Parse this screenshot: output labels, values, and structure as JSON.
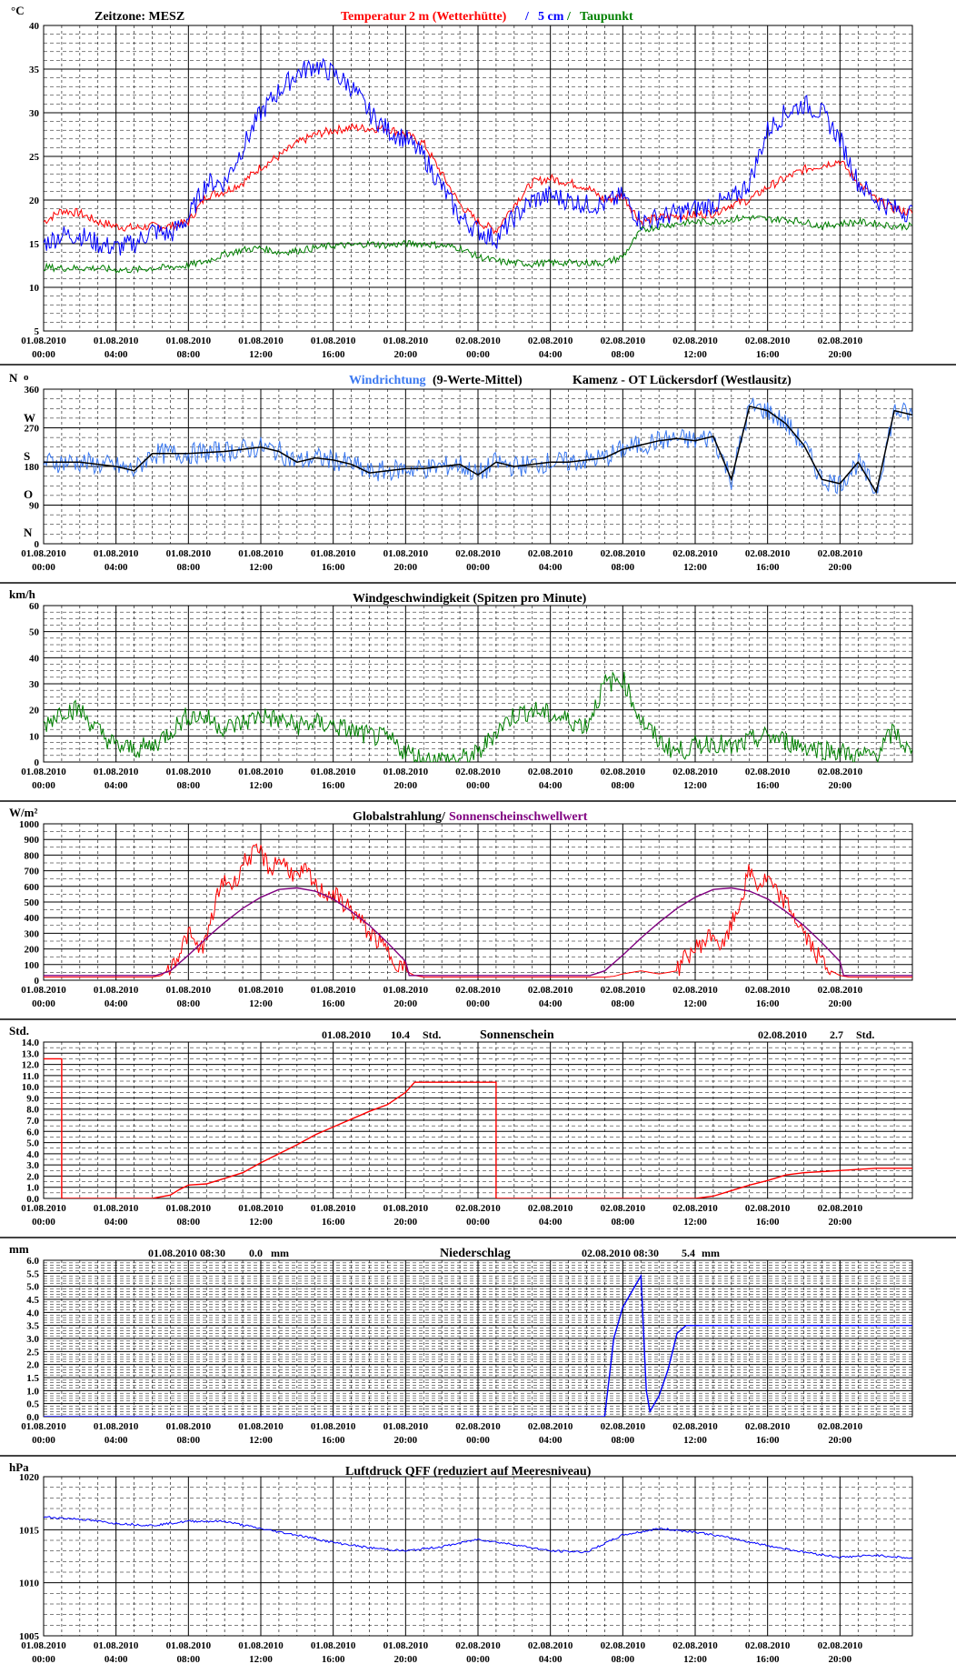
{
  "xaxis": {
    "dates": [
      "01.08.2010",
      "01.08.2010",
      "01.08.2010",
      "01.08.2010",
      "01.08.2010",
      "01.08.2010",
      "02.08.2010",
      "02.08.2010",
      "02.08.2010",
      "02.08.2010",
      "02.08.2010",
      "02.08.2010"
    ],
    "times": [
      "00:00",
      "04:00",
      "08:00",
      "12:00",
      "16:00",
      "20:00",
      "00:00",
      "04:00",
      "08:00",
      "12:00",
      "16:00",
      "20:00"
    ]
  },
  "panels": {
    "temp": {
      "unit": "°C",
      "zone_label": "Zeitzone: MESZ",
      "title_red": "Temperatur 2 m (Wetterhütte)",
      "title_sep1": " / ",
      "title_blue": "5 cm",
      "title_sep2": " / ",
      "title_green": "Taupunkt",
      "yticks": [
        "40",
        "35",
        "30",
        "25",
        "20",
        "15",
        "10",
        "5"
      ]
    },
    "wind_dir": {
      "unit": "N",
      "title_blue": "Windrichtung",
      "title_rest": " (9-Werte-Mittel)",
      "station": "Kamenz - OT Lückersdorf (Westlausitz)",
      "ytick_values": [
        "360",
        "270",
        "180",
        "90",
        "0"
      ],
      "ytick_letters": [
        "W",
        "S",
        "O",
        "N"
      ]
    },
    "wind_speed": {
      "unit": "km/h",
      "title": "Windgeschwindigkeit (Spitzen pro Minute)",
      "yticks": [
        "60",
        "50",
        "40",
        "30",
        "20",
        "10",
        "0"
      ]
    },
    "radiation": {
      "unit": "W/m²",
      "title_black": "Globalstrahlung/",
      "title_purple": " Sonnenscheinschwellwert",
      "yticks": [
        "1000",
        "900",
        "800",
        "700",
        "600",
        "500",
        "400",
        "300",
        "200",
        "100",
        "0"
      ]
    },
    "sunshine": {
      "unit": "Std.",
      "title": "Sonnenschein",
      "day1_date": "01.08.2010",
      "day1_value": "10.4",
      "day1_unit": "Std.",
      "day2_date": "02.08.2010",
      "day2_value": "2.7",
      "day2_unit": "Std.",
      "yticks": [
        "14.0",
        "13.0",
        "12.0",
        "11.0",
        "10.0",
        "9.0",
        "8.0",
        "7.0",
        "6.0",
        "5.0",
        "4.0",
        "3.0",
        "2.0",
        "1.0",
        "0.0"
      ]
    },
    "precip": {
      "unit": "mm",
      "title": "Niederschlag",
      "day1_stamp": "01.08.2010 08:30",
      "day1_value": "0.0",
      "day1_unit": "mm",
      "day2_stamp": "02.08.2010 08:30",
      "day2_value": "5.4",
      "day2_unit": "mm",
      "yticks": [
        "6.0",
        "5.5",
        "5.0",
        "4.5",
        "4.0",
        "3.5",
        "3.0",
        "2.5",
        "2.0",
        "1.5",
        "1.0",
        "0.5",
        "0.0"
      ]
    },
    "pressure": {
      "unit": "hPa",
      "title": "Luftdruck QFF (reduziert auf Meeresniveau)",
      "yticks": [
        "1020",
        "1015",
        "1010",
        "1005"
      ]
    }
  },
  "colors": {
    "temp2m": "#ff0000",
    "temp5cm": "#0000ff",
    "dewpoint": "#008000",
    "wind_dir_raw": "#3a78f0",
    "wind_dir_mean": "#000000",
    "wind_speed": "#008000",
    "radiation": "#ff0000",
    "threshold": "#800080",
    "sunshine": "#ff0000",
    "precip": "#0000ff",
    "pressure": "#0000ff"
  },
  "chart_data": [
    {
      "type": "line",
      "x_unit": "hours since 01.08.2010 00:00",
      "xlim": [
        0,
        48
      ],
      "ylim": [
        5,
        40
      ],
      "series": [
        {
          "name": "Temperatur 2 m (Wetterhütte)",
          "x": [
            0,
            1,
            2,
            3,
            4,
            5,
            6,
            7,
            8,
            9,
            10,
            11,
            12,
            13,
            14,
            15,
            16,
            17,
            18,
            19,
            20,
            21,
            22,
            23,
            24,
            25,
            26,
            27,
            28,
            29,
            30,
            31,
            32,
            33,
            34,
            35,
            36,
            37,
            38,
            39,
            40,
            41,
            42,
            43,
            44,
            45,
            46,
            47,
            48
          ],
          "y": [
            17.5,
            18.8,
            18.5,
            17.5,
            17,
            16.8,
            17,
            17,
            17.5,
            20.5,
            21,
            22,
            23.8,
            25,
            26.5,
            27.5,
            28,
            28.3,
            28.2,
            28.2,
            27.5,
            26.5,
            23,
            19.5,
            17.5,
            16.5,
            19.5,
            22,
            22.5,
            22,
            21.5,
            20,
            20.5,
            17.5,
            18,
            18.2,
            18.3,
            18.5,
            19.5,
            20,
            21.5,
            22.5,
            23.5,
            24,
            24.5,
            22,
            20,
            19,
            18.5
          ]
        },
        {
          "name": "5 cm",
          "x": [
            0,
            1,
            2,
            3,
            4,
            5,
            6,
            7,
            8,
            9,
            10,
            11,
            12,
            13,
            14,
            15,
            16,
            17,
            18,
            19,
            20,
            21,
            22,
            23,
            24,
            25,
            26,
            27,
            28,
            29,
            30,
            31,
            32,
            33,
            34,
            35,
            36,
            37,
            38,
            39,
            40,
            41,
            42,
            43,
            44,
            45,
            46,
            47,
            48
          ],
          "y": [
            15,
            16,
            16,
            15,
            14.5,
            15,
            16.5,
            16,
            18,
            22,
            22,
            26,
            30,
            32.5,
            34.5,
            35.5,
            34.5,
            33,
            30,
            28,
            27,
            25,
            21.5,
            18,
            16.5,
            15.5,
            18,
            20,
            20.5,
            20,
            19.5,
            19.5,
            20.5,
            17.5,
            18,
            18.5,
            19,
            19.5,
            20,
            22,
            28,
            30,
            31,
            30,
            27,
            22,
            20,
            19,
            18.5
          ]
        },
        {
          "name": "Taupunkt",
          "x": [
            0,
            1,
            2,
            3,
            4,
            5,
            6,
            7,
            8,
            9,
            10,
            11,
            12,
            13,
            14,
            15,
            16,
            17,
            18,
            19,
            20,
            21,
            22,
            23,
            24,
            25,
            26,
            27,
            28,
            29,
            30,
            31,
            32,
            33,
            34,
            35,
            36,
            37,
            38,
            39,
            40,
            41,
            42,
            43,
            44,
            45,
            46,
            47,
            48
          ],
          "y": [
            12.3,
            12.2,
            12.2,
            12.2,
            12,
            12,
            12.2,
            12.3,
            12.5,
            13,
            13.8,
            14.3,
            14.5,
            14,
            14.2,
            14.5,
            14.8,
            14.8,
            15,
            14.8,
            15,
            15,
            14.8,
            14.5,
            13.5,
            13,
            12.8,
            12.7,
            12.8,
            12.8,
            12.8,
            12.8,
            13.5,
            16.5,
            17,
            17.3,
            17.5,
            17.5,
            17.8,
            18,
            17.8,
            17.8,
            17.5,
            17,
            17.3,
            17.5,
            17.3,
            17,
            17
          ]
        }
      ]
    },
    {
      "type": "line",
      "x_unit": "hours since 01.08.2010 00:00",
      "xlim": [
        0,
        48
      ],
      "ylim": [
        0,
        360
      ],
      "series": [
        {
          "name": "Windrichtung",
          "x": [
            0,
            2,
            4,
            5,
            6,
            8,
            10,
            12,
            13,
            14,
            15,
            16,
            17,
            18,
            19,
            20,
            21,
            22,
            23,
            24,
            25,
            26,
            27,
            28,
            29,
            30,
            31,
            32,
            33,
            34,
            35,
            36,
            37,
            38,
            39,
            40,
            41,
            42,
            43,
            44,
            45,
            46,
            47,
            48
          ],
          "y": [
            190,
            190,
            180,
            170,
            210,
            210,
            215,
            225,
            215,
            190,
            200,
            195,
            185,
            165,
            170,
            175,
            175,
            180,
            185,
            160,
            190,
            180,
            185,
            190,
            190,
            195,
            200,
            220,
            230,
            240,
            245,
            240,
            250,
            150,
            320,
            310,
            280,
            230,
            150,
            140,
            190,
            120,
            310,
            300
          ]
        }
      ]
    },
    {
      "type": "line",
      "x_unit": "hours since 01.08.2010 00:00",
      "xlim": [
        0,
        48
      ],
      "ylim": [
        0,
        60
      ],
      "series": [
        {
          "name": "Windgeschwindigkeit (Spitzen pro Minute)",
          "x": [
            0,
            1,
            2,
            3,
            4,
            5,
            6,
            7,
            8,
            9,
            10,
            11,
            12,
            13,
            14,
            15,
            16,
            17,
            18,
            19,
            20,
            21,
            22,
            23,
            24,
            25,
            26,
            27,
            28,
            29,
            30,
            31,
            32,
            33,
            34,
            35,
            36,
            37,
            38,
            39,
            40,
            41,
            42,
            43,
            44,
            45,
            46,
            47,
            48
          ],
          "y": [
            14,
            20,
            20,
            12,
            6,
            5,
            6,
            12,
            18,
            17,
            13,
            15,
            18,
            16,
            14,
            15,
            14,
            12,
            10,
            9,
            4,
            1,
            1,
            1,
            3,
            12,
            18,
            20,
            18,
            16,
            14,
            30,
            32,
            16,
            8,
            4,
            6,
            8,
            5,
            8,
            10,
            8,
            6,
            5,
            4,
            2,
            3,
            12,
            2
          ]
        }
      ]
    },
    {
      "type": "line",
      "x_unit": "hours since 01.08.2010 00:00",
      "xlim": [
        0,
        48
      ],
      "ylim": [
        0,
        1000
      ],
      "series": [
        {
          "name": "Globalstrahlung",
          "x": [
            0,
            5,
            6,
            6.5,
            7,
            7.5,
            8,
            8.5,
            9,
            9.5,
            10,
            10.5,
            11,
            11.5,
            12,
            12.5,
            13,
            13.5,
            14,
            14.5,
            15,
            15.5,
            16,
            16.5,
            17,
            17.5,
            18,
            18.5,
            19,
            19.5,
            20,
            20.5,
            21,
            25,
            30,
            31,
            31.5,
            32,
            33,
            34,
            35,
            35.5,
            36,
            36.5,
            37,
            37.5,
            38,
            38.5,
            39,
            39.5,
            40,
            40.5,
            41,
            41.5,
            42,
            42.5,
            43,
            43.5,
            44,
            44.5,
            45,
            48
          ],
          "y": [
            20,
            20,
            20,
            30,
            80,
            180,
            300,
            200,
            250,
            500,
            650,
            600,
            750,
            800,
            820,
            700,
            780,
            720,
            650,
            700,
            600,
            560,
            550,
            500,
            450,
            380,
            300,
            250,
            180,
            120,
            60,
            30,
            20,
            20,
            20,
            20,
            25,
            40,
            60,
            40,
            60,
            150,
            200,
            250,
            300,
            200,
            350,
            500,
            700,
            600,
            650,
            550,
            500,
            400,
            300,
            200,
            120,
            60,
            30,
            20,
            20,
            20
          ]
        },
        {
          "name": "Sonnenscheinschwellwert",
          "x": [
            0,
            6.2,
            7,
            8,
            9,
            10,
            11,
            12,
            13,
            14,
            15,
            16,
            17,
            18,
            19,
            20,
            20.2,
            30.2,
            31,
            32,
            33,
            34,
            35,
            36,
            37,
            38,
            39,
            40,
            41,
            42,
            43,
            44,
            44.2,
            48
          ],
          "y": [
            30,
            30,
            60,
            160,
            270,
            370,
            460,
            530,
            580,
            590,
            570,
            520,
            440,
            350,
            240,
            120,
            30,
            30,
            60,
            160,
            270,
            370,
            460,
            530,
            580,
            590,
            570,
            520,
            440,
            350,
            240,
            120,
            30,
            30
          ]
        }
      ]
    },
    {
      "type": "line",
      "x_unit": "hours since 01.08.2010 00:00",
      "xlim": [
        0,
        48
      ],
      "ylim": [
        0,
        14
      ],
      "series": [
        {
          "name": "Sonnenschein",
          "x": [
            0,
            1,
            1,
            6,
            7,
            7.5,
            8,
            9,
            10,
            11,
            12,
            13,
            14,
            15,
            16,
            17,
            18,
            19,
            20,
            20.5,
            25,
            25,
            35,
            36,
            37,
            38,
            39,
            40,
            41,
            42,
            43,
            44,
            45,
            46,
            47,
            48
          ],
          "y": [
            12.5,
            12.5,
            0,
            0,
            0.3,
            0.8,
            1.2,
            1.3,
            1.8,
            2.3,
            3.2,
            4.0,
            4.8,
            5.7,
            6.4,
            7.1,
            7.8,
            8.4,
            9.5,
            10.4,
            10.4,
            0,
            0,
            0,
            0.2,
            0.7,
            1.2,
            1.6,
            2.1,
            2.3,
            2.4,
            2.5,
            2.6,
            2.7,
            2.7,
            2.7
          ]
        }
      ]
    },
    {
      "type": "line",
      "x_unit": "hours since 01.08.2010 00:00",
      "xlim": [
        0,
        48
      ],
      "ylim": [
        0,
        6
      ],
      "series": [
        {
          "name": "Niederschlag",
          "x": [
            0,
            31,
            31.5,
            32,
            32.5,
            33,
            33.3,
            33.5,
            34,
            34.5,
            35,
            35.5,
            36,
            40,
            48
          ],
          "y": [
            0,
            0,
            3.0,
            4.2,
            4.8,
            5.4,
            1.0,
            0.2,
            0.8,
            1.8,
            3.2,
            3.5,
            3.5,
            3.5,
            3.5
          ]
        }
      ]
    },
    {
      "type": "line",
      "x_unit": "hours since 01.08.2010 00:00",
      "xlim": [
        0,
        48
      ],
      "ylim": [
        1005,
        1020
      ],
      "series": [
        {
          "name": "Luftdruck QFF (reduziert auf Meeresniveau)",
          "x": [
            0,
            2,
            4,
            6,
            8,
            10,
            12,
            14,
            16,
            18,
            20,
            22,
            24,
            26,
            28,
            30,
            32,
            34,
            36,
            38,
            40,
            42,
            44,
            46,
            48
          ],
          "y": [
            1016.2,
            1016,
            1015.6,
            1015.4,
            1015.8,
            1015.8,
            1015.1,
            1014.5,
            1013.8,
            1013.3,
            1013,
            1013.4,
            1014.1,
            1013.6,
            1013,
            1012.9,
            1014.5,
            1015.1,
            1014.8,
            1014.2,
            1013.5,
            1012.9,
            1012.4,
            1012.6,
            1012.3
          ]
        }
      ]
    }
  ]
}
